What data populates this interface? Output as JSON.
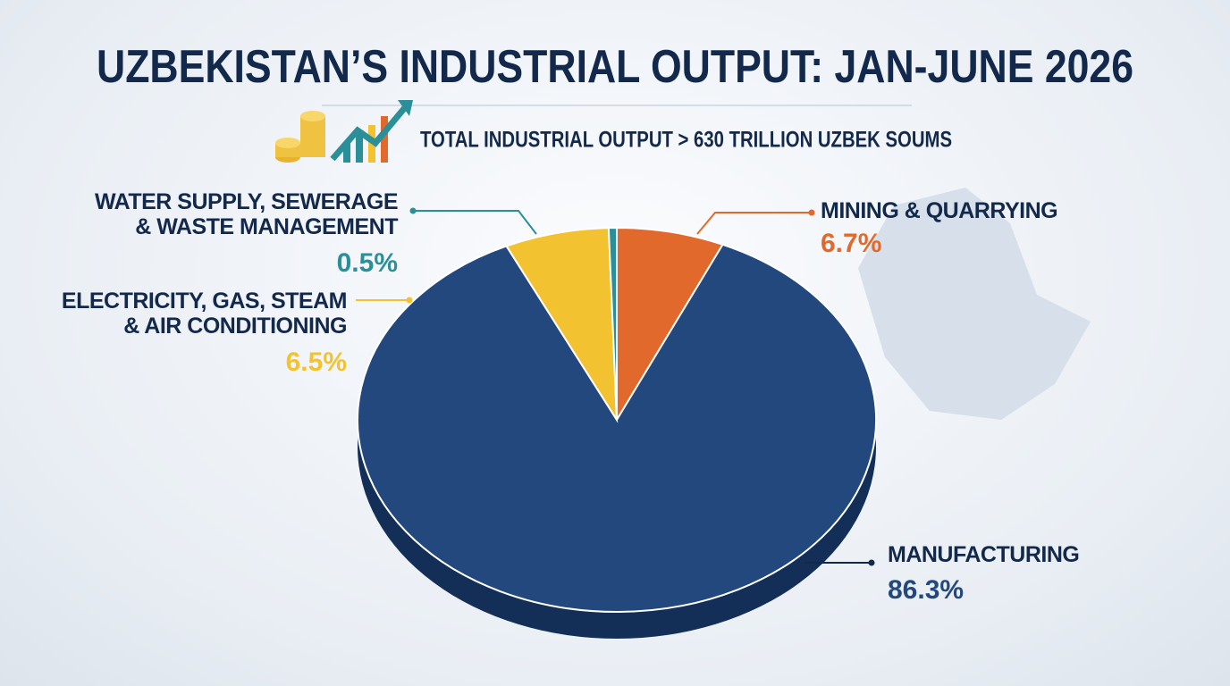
{
  "chart_data": {
    "type": "pie",
    "title": "UZBEKISTAN’S INDUSTRIAL OUTPUT: JAN-JUNE 2026",
    "subtitle": "TOTAL INDUSTRIAL OUTPUT > 630 TRILLION UZBEK SOUMS",
    "categories": [
      "MINING & QUARRYING",
      "MANUFACTURING",
      "ELECTRICITY, GAS, STEAM\n& AIR CONDITIONING",
      "WATER SUPPLY, SEWERAGE\n& WASTE MANAGEMENT"
    ],
    "values": [
      6.7,
      86.3,
      6.5,
      0.5
    ],
    "value_labels": [
      "6.7%",
      "86.3%",
      "6.5%",
      "0.5%"
    ],
    "colors": [
      "#e2692c",
      "#23487e",
      "#f3c230",
      "#2a8f98"
    ]
  }
}
